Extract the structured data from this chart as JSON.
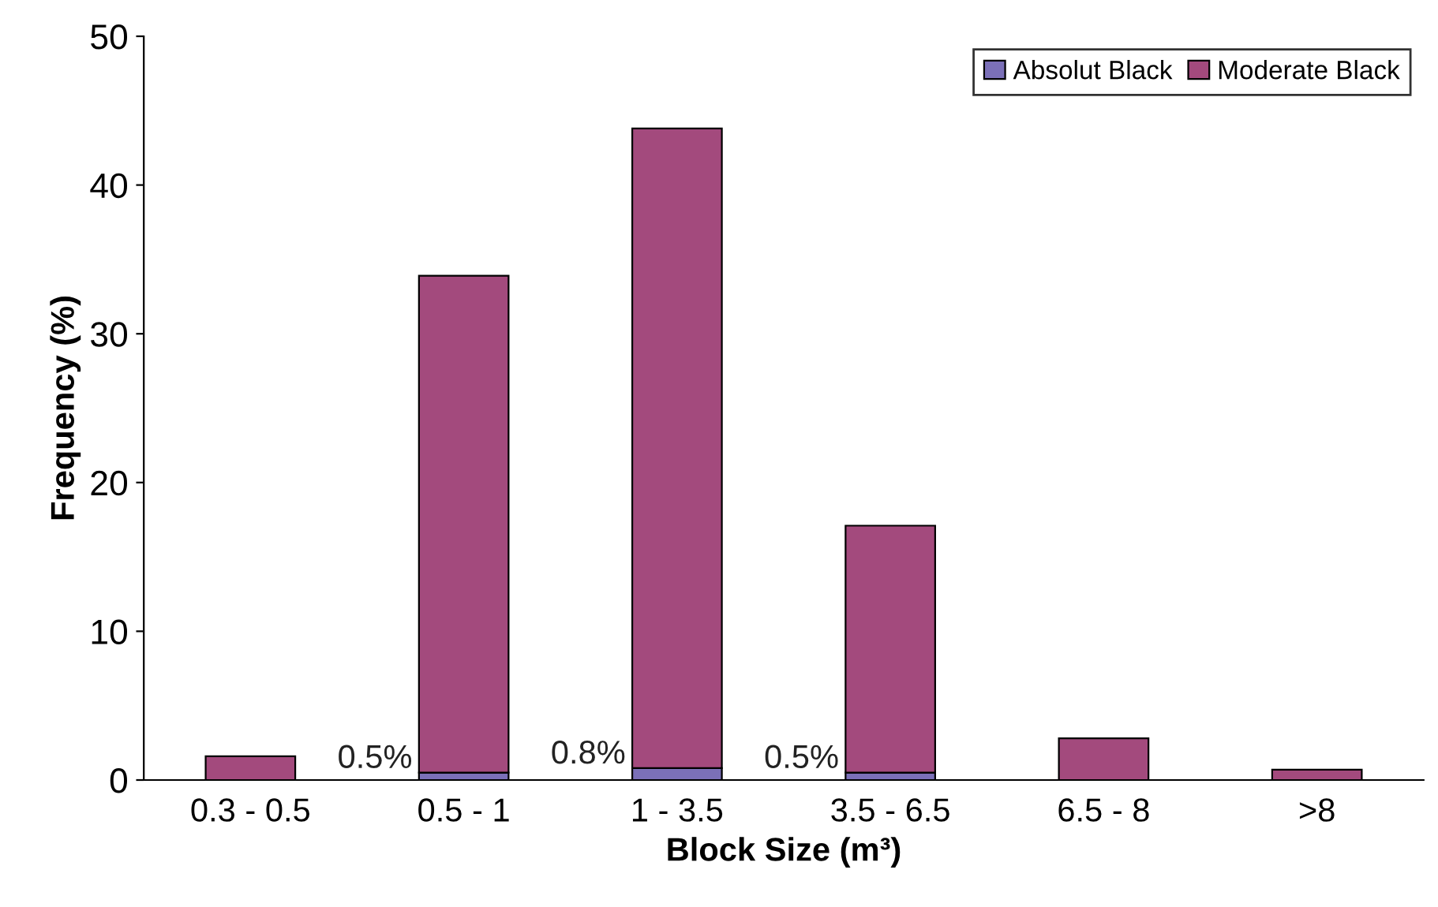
{
  "chart_data": {
    "type": "bar",
    "stacked": true,
    "xlabel": "Block Size (m³)",
    "ylabel": "Frequency (%)",
    "categories": [
      "0.3 - 0.5",
      "0.5 - 1",
      "1 - 3.5",
      "3.5 - 6.5",
      "6.5 - 8",
      ">8"
    ],
    "series": [
      {
        "name": "Absolut Black",
        "color": "#7b70b8",
        "values": [
          0,
          0.5,
          0.8,
          0.5,
          0,
          0
        ]
      },
      {
        "name": "Moderate Black",
        "color": "#a34a7d",
        "values": [
          1.6,
          33.4,
          43.0,
          16.6,
          2.8,
          0.7
        ]
      }
    ],
    "annotations": [
      {
        "text": "0.5%",
        "x": "0.5 - 1",
        "y": 0.5
      },
      {
        "text": "0.8%",
        "x": "1 - 3.5",
        "y": 0.8
      },
      {
        "text": "0.5%",
        "x": "3.5 - 6.5",
        "y": 0.5
      }
    ],
    "ylim": [
      0,
      50
    ],
    "yticks": [
      0,
      10,
      20,
      30,
      40,
      50
    ],
    "grid": false,
    "legend": "top right"
  }
}
